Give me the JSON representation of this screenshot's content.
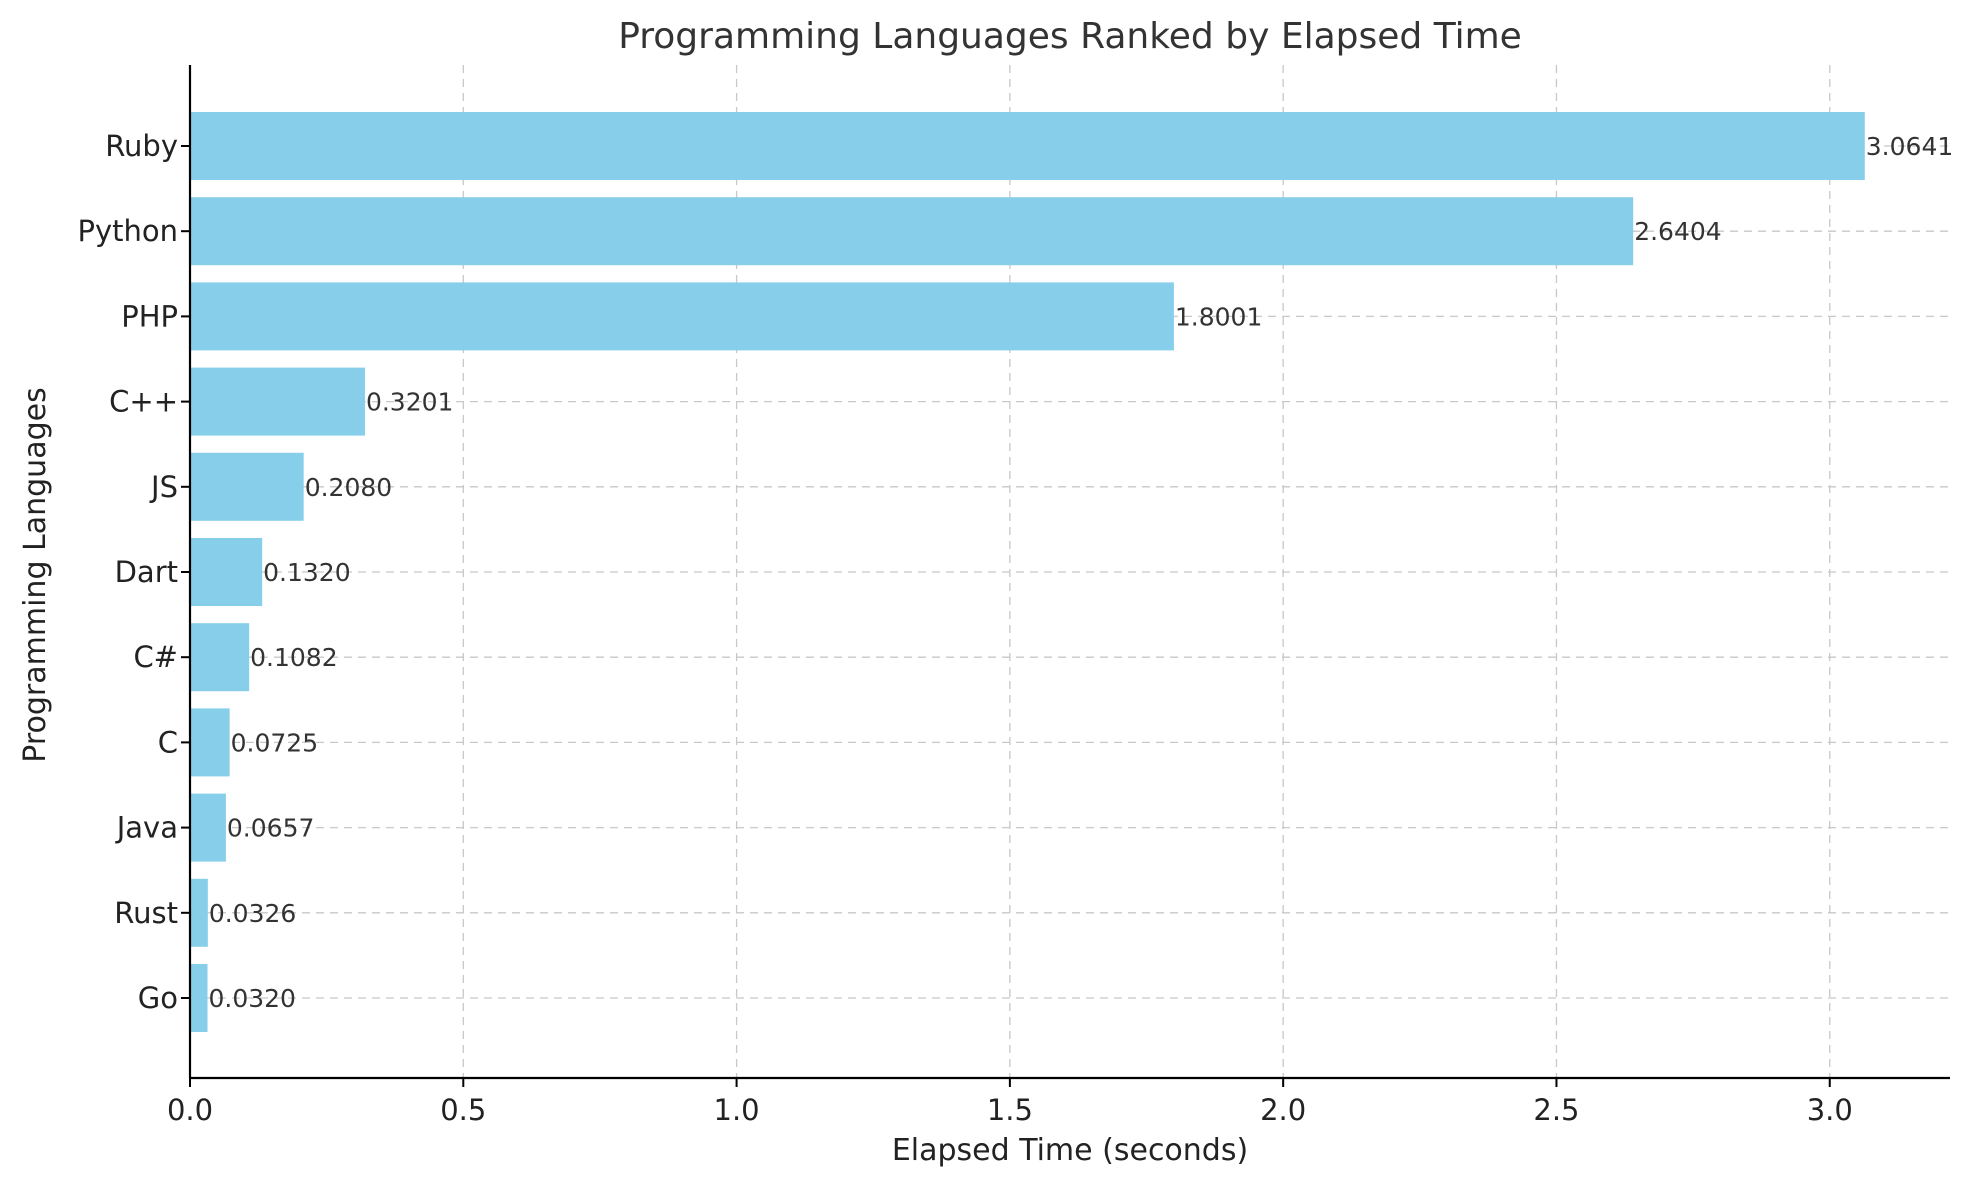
{
  "chart_data": {
    "type": "bar",
    "orientation": "horizontal",
    "title": "Programming Languages Ranked by Elapsed Time",
    "xlabel": "Elapsed Time (seconds)",
    "ylabel": "Programming Languages",
    "categories": [
      "Ruby",
      "Python",
      "PHP",
      "C++",
      "JS",
      "Dart",
      "C#",
      "C",
      "Java",
      "Rust",
      "Go"
    ],
    "values": [
      3.0641,
      2.6404,
      1.8001,
      0.3201,
      0.208,
      0.132,
      0.1082,
      0.0725,
      0.0657,
      0.0326,
      0.032
    ],
    "value_labels": [
      "3.0641",
      "2.6404",
      "1.8001",
      "0.3201",
      "0.2080",
      "0.1320",
      "0.1082",
      "0.0725",
      "0.0657",
      "0.0326",
      "0.0320"
    ],
    "xlim": [
      0,
      3.22
    ],
    "xticks": [
      0,
      0.5,
      1.0,
      1.5,
      2.0,
      2.5,
      3.0
    ],
    "xtick_labels": [
      "0.0",
      "0.5",
      "1.0",
      "1.5",
      "2.0",
      "2.5",
      "3.0"
    ],
    "grid": true,
    "bar_color": "#87CEEB"
  }
}
